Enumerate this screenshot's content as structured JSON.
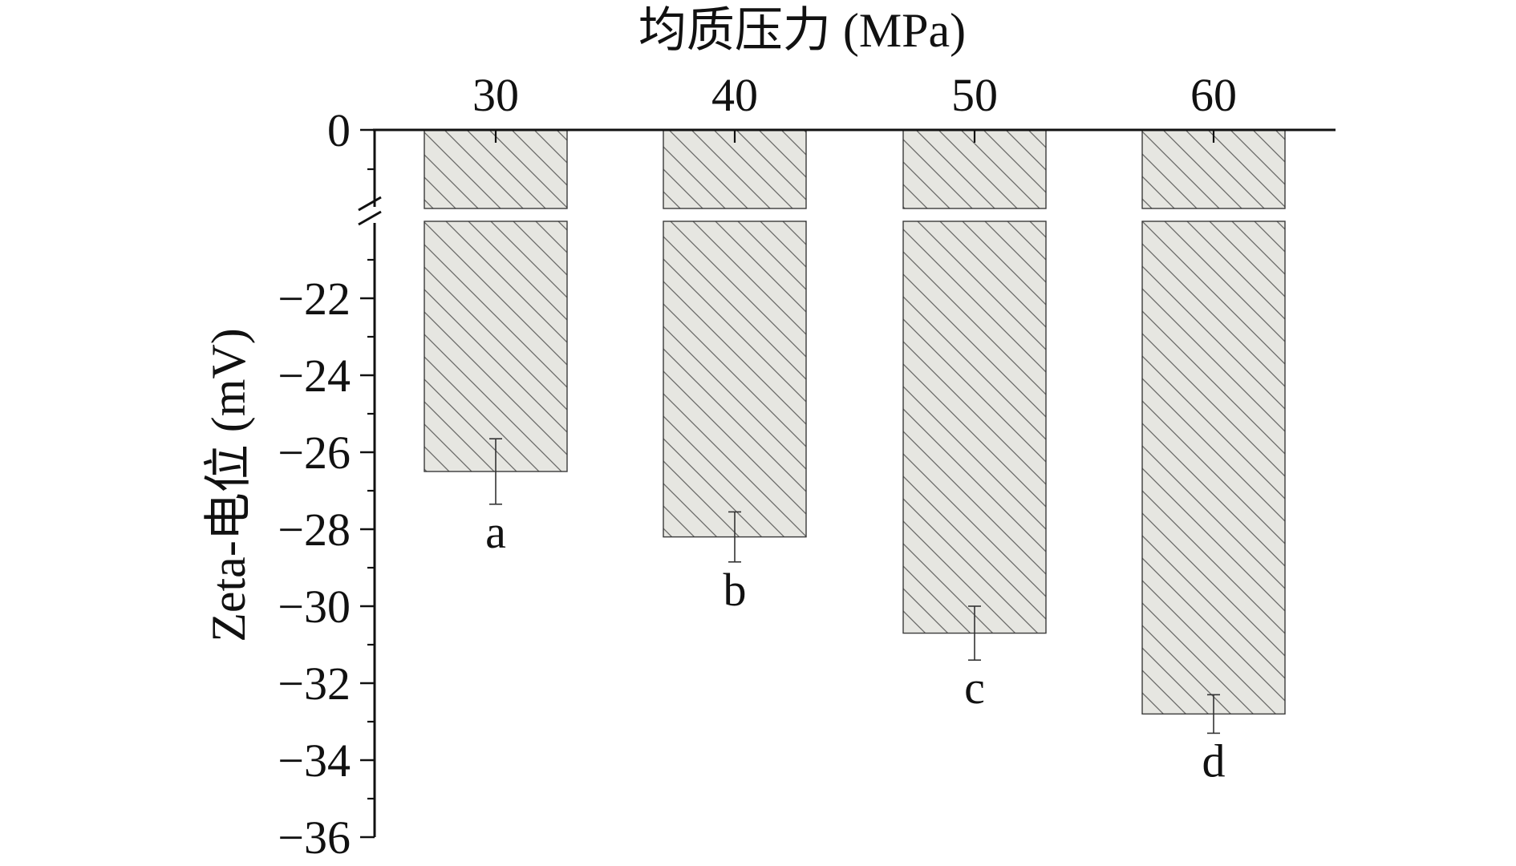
{
  "chart_data": {
    "type": "bar",
    "xlabel": "均质压力 (MPa)",
    "ylabel": "Zeta-电位 (mV)",
    "categories": [
      "30",
      "40",
      "50",
      "60"
    ],
    "values": [
      -26.5,
      -28.2,
      -30.7,
      -32.8
    ],
    "errors": [
      0.85,
      0.65,
      0.7,
      0.5
    ],
    "significance_letters": [
      "a",
      "b",
      "c",
      "d"
    ],
    "y_ticks": [
      -22,
      -24,
      -26,
      -28,
      -30,
      -32,
      -34,
      -36
    ],
    "y_tick_labels": [
      "−22",
      "−24",
      "−26",
      "−28",
      "−30",
      "−32",
      "−34",
      "−36"
    ],
    "y_zero_label": "0",
    "ylim": [
      -36,
      0
    ],
    "axis_break": [
      -20,
      0
    ],
    "x_axis_position": "top",
    "grid": false,
    "legend": "none",
    "bar_fill": "#e6e6e1",
    "hatch_color": "#333333"
  }
}
